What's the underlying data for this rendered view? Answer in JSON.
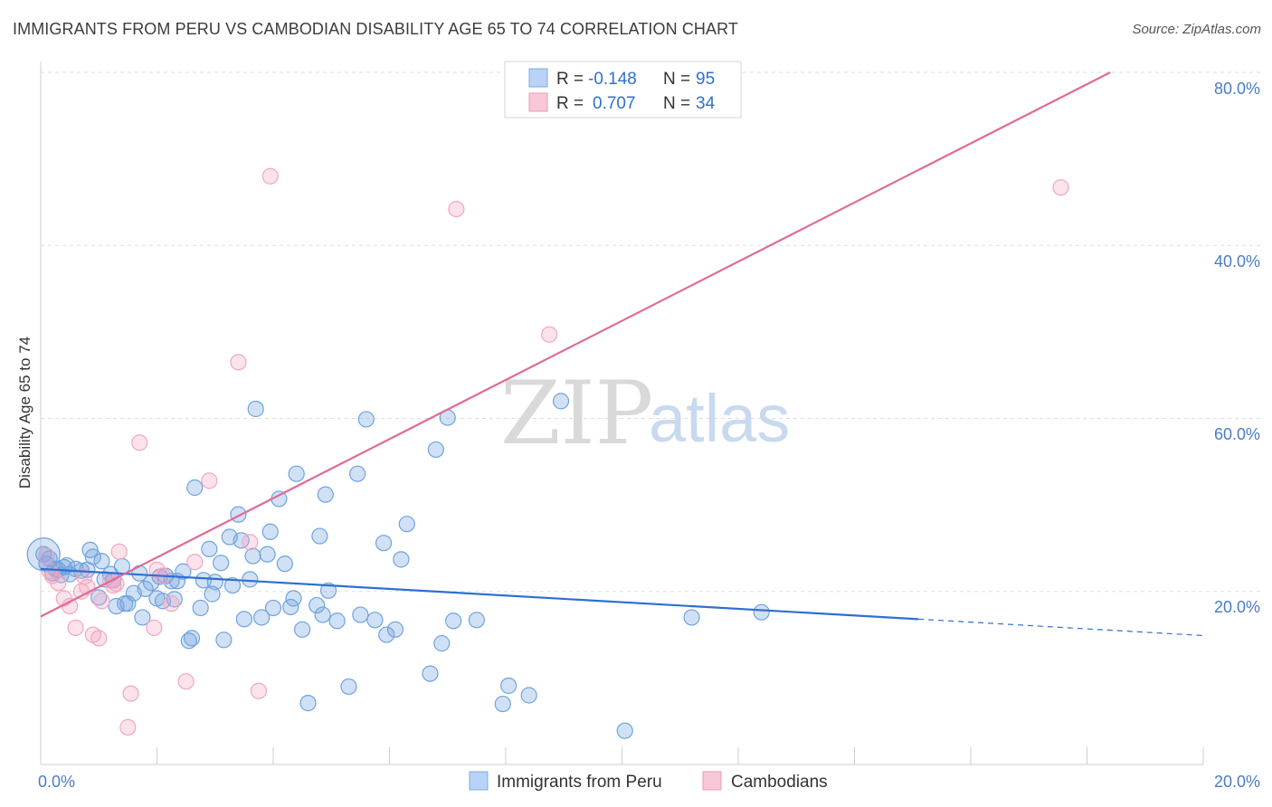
{
  "title": "IMMIGRANTS FROM PERU VS CAMBODIAN DISABILITY AGE 65 TO 74 CORRELATION CHART",
  "source": "Source: ZipAtlas.com",
  "watermark": {
    "zip": "ZIP",
    "atlas": "atlas"
  },
  "legend": {
    "r_label": "R =",
    "n_label": "N =",
    "items": [
      {
        "r": "-0.148",
        "n": "95",
        "color": "#a8c8f0"
      },
      {
        "r": "0.707",
        "n": "34",
        "color": "#f8bcd0"
      }
    ]
  },
  "chart_data": {
    "type": "scatter",
    "ylabel": "Disability Age 65 to 74",
    "xlim": [
      0,
      20
    ],
    "ylim": [
      0,
      80
    ],
    "x_ticks": [
      "0.0%",
      "20.0%"
    ],
    "y_ticks": [
      "20.0%",
      "40.0%",
      "60.0%",
      "80.0%"
    ],
    "series": [
      {
        "name": "Immigrants from Peru",
        "color": "#6fa3e0",
        "line_color": "#2f6fd0",
        "trend": {
          "x0": 0,
          "y0": 22.6,
          "x1": 15.1,
          "y1": 16.8,
          "dash_to_x": 20,
          "dash_to_y": 14.9
        },
        "points": [
          [
            0.05,
            24.3
          ],
          [
            0.1,
            23.2
          ],
          [
            0.2,
            22.1
          ],
          [
            0.3,
            22.5
          ],
          [
            0.35,
            21.9
          ],
          [
            0.4,
            22.8
          ],
          [
            0.5,
            22.0
          ],
          [
            0.6,
            22.6
          ],
          [
            0.7,
            22.4
          ],
          [
            0.8,
            22.5
          ],
          [
            0.85,
            24.8
          ],
          [
            0.9,
            24.0
          ],
          [
            1.0,
            19.3
          ],
          [
            1.05,
            23.5
          ],
          [
            1.1,
            21.4
          ],
          [
            1.2,
            22.0
          ],
          [
            1.3,
            18.3
          ],
          [
            1.4,
            22.9
          ],
          [
            1.45,
            18.6
          ],
          [
            1.5,
            18.6
          ],
          [
            1.6,
            19.8
          ],
          [
            1.7,
            22.1
          ],
          [
            1.75,
            17.0
          ],
          [
            1.8,
            20.3
          ],
          [
            1.9,
            21.0
          ],
          [
            2.0,
            19.2
          ],
          [
            2.05,
            21.7
          ],
          [
            2.15,
            21.8
          ],
          [
            2.25,
            21.2
          ],
          [
            2.3,
            19.1
          ],
          [
            2.35,
            21.2
          ],
          [
            2.45,
            22.3
          ],
          [
            2.55,
            14.3
          ],
          [
            2.6,
            14.6
          ],
          [
            2.65,
            32.0
          ],
          [
            2.75,
            18.1
          ],
          [
            2.8,
            21.3
          ],
          [
            2.9,
            24.9
          ],
          [
            2.95,
            19.7
          ],
          [
            3.0,
            21.1
          ],
          [
            3.1,
            23.3
          ],
          [
            3.15,
            14.4
          ],
          [
            3.25,
            26.3
          ],
          [
            3.3,
            20.7
          ],
          [
            3.4,
            28.9
          ],
          [
            3.45,
            25.9
          ],
          [
            3.5,
            16.8
          ],
          [
            3.6,
            21.4
          ],
          [
            3.65,
            24.1
          ],
          [
            3.7,
            41.1
          ],
          [
            3.8,
            17.0
          ],
          [
            3.9,
            24.3
          ],
          [
            3.95,
            26.9
          ],
          [
            4.0,
            18.1
          ],
          [
            4.1,
            30.7
          ],
          [
            4.2,
            23.2
          ],
          [
            4.3,
            18.2
          ],
          [
            4.35,
            19.2
          ],
          [
            4.4,
            33.6
          ],
          [
            4.5,
            15.6
          ],
          [
            4.6,
            7.1
          ],
          [
            4.75,
            18.4
          ],
          [
            4.8,
            26.4
          ],
          [
            4.85,
            17.3
          ],
          [
            4.9,
            31.2
          ],
          [
            4.95,
            20.1
          ],
          [
            5.1,
            16.6
          ],
          [
            5.3,
            9.0
          ],
          [
            5.45,
            33.6
          ],
          [
            5.5,
            17.3
          ],
          [
            5.6,
            39.9
          ],
          [
            5.75,
            16.7
          ],
          [
            5.9,
            25.6
          ],
          [
            5.95,
            15.0
          ],
          [
            6.1,
            15.6
          ],
          [
            6.2,
            23.7
          ],
          [
            6.3,
            27.8
          ],
          [
            6.7,
            10.5
          ],
          [
            6.8,
            36.4
          ],
          [
            6.9,
            14.0
          ],
          [
            7.0,
            40.1
          ],
          [
            7.1,
            16.6
          ],
          [
            7.5,
            16.7
          ],
          [
            7.95,
            7.0
          ],
          [
            8.05,
            9.1
          ],
          [
            8.4,
            8.0
          ],
          [
            8.95,
            42.0
          ],
          [
            10.05,
            3.9
          ],
          [
            11.2,
            17.0
          ],
          [
            12.4,
            17.6
          ],
          [
            0.15,
            23.8
          ],
          [
            0.25,
            22.6
          ],
          [
            0.45,
            23.0
          ],
          [
            1.25,
            21.3
          ],
          [
            2.1,
            18.9
          ]
        ]
      },
      {
        "name": "Cambodians",
        "color": "#f3a6c2",
        "line_color": "#e06a96",
        "trend": {
          "x0": 0,
          "y0": 17.1,
          "x1": 18.4,
          "y1": 80.0
        },
        "points": [
          [
            0.1,
            24.1
          ],
          [
            0.2,
            21.8
          ],
          [
            0.3,
            21.0
          ],
          [
            0.4,
            19.2
          ],
          [
            0.5,
            18.3
          ],
          [
            0.6,
            15.8
          ],
          [
            0.7,
            20.0
          ],
          [
            0.75,
            21.7
          ],
          [
            0.8,
            20.5
          ],
          [
            0.9,
            15.0
          ],
          [
            1.0,
            14.6
          ],
          [
            1.05,
            18.9
          ],
          [
            1.2,
            21.3
          ],
          [
            1.25,
            20.7
          ],
          [
            1.35,
            24.6
          ],
          [
            1.55,
            8.2
          ],
          [
            1.5,
            4.3
          ],
          [
            1.7,
            37.2
          ],
          [
            1.95,
            15.8
          ],
          [
            2.0,
            22.5
          ],
          [
            2.1,
            21.8
          ],
          [
            2.25,
            18.6
          ],
          [
            2.5,
            9.6
          ],
          [
            2.65,
            23.4
          ],
          [
            2.9,
            32.8
          ],
          [
            3.4,
            46.5
          ],
          [
            3.6,
            25.7
          ],
          [
            3.75,
            8.5
          ],
          [
            3.95,
            68.0
          ],
          [
            7.15,
            64.2
          ],
          [
            8.75,
            49.7
          ],
          [
            17.55,
            66.7
          ],
          [
            0.15,
            22.4
          ],
          [
            1.3,
            20.9
          ]
        ]
      }
    ]
  }
}
